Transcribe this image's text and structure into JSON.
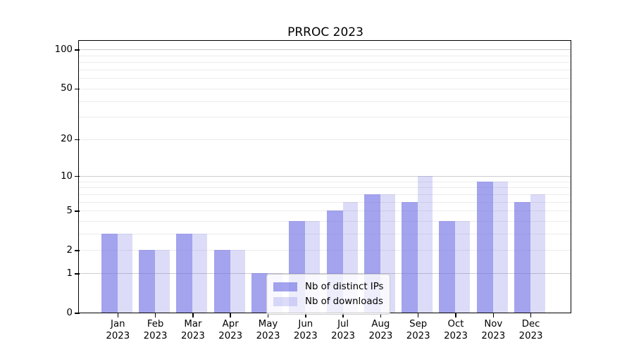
{
  "title": "PRROC 2023",
  "chart_data": {
    "type": "bar",
    "title": "PRROC 2023",
    "categories": [
      "Jan",
      "Feb",
      "Mar",
      "Apr",
      "May",
      "Jun",
      "Jul",
      "Aug",
      "Sep",
      "Oct",
      "Nov",
      "Dec"
    ],
    "category_year": "2023",
    "series": [
      {
        "name": "Nb of distinct IPs",
        "color": "rgba(110,110,228,0.63)",
        "color_hex_on_white": "#a3a3ee",
        "values": [
          3,
          2,
          3,
          2,
          1,
          4,
          5,
          7,
          6,
          4,
          9,
          6
        ]
      },
      {
        "name": "Nb of downloads",
        "color": "rgba(110,110,228,0.24)",
        "color_hex_on_white": "#dcdcf8",
        "values": [
          3,
          2,
          3,
          2,
          1,
          4,
          6,
          7,
          10,
          4,
          9,
          7
        ]
      }
    ],
    "xlabel": "",
    "ylabel": "",
    "yscale": "symlog",
    "ylim": [
      0,
      116
    ],
    "yticks_labeled": [
      0,
      1,
      2,
      5,
      10,
      20,
      50,
      100
    ],
    "gridlines_major": [
      1,
      10,
      100
    ],
    "gridlines_minor": [
      2,
      3,
      4,
      5,
      6,
      7,
      8,
      9,
      20,
      30,
      40,
      50,
      60,
      70,
      80,
      90
    ],
    "grid": true,
    "legend_position": "lower center"
  }
}
